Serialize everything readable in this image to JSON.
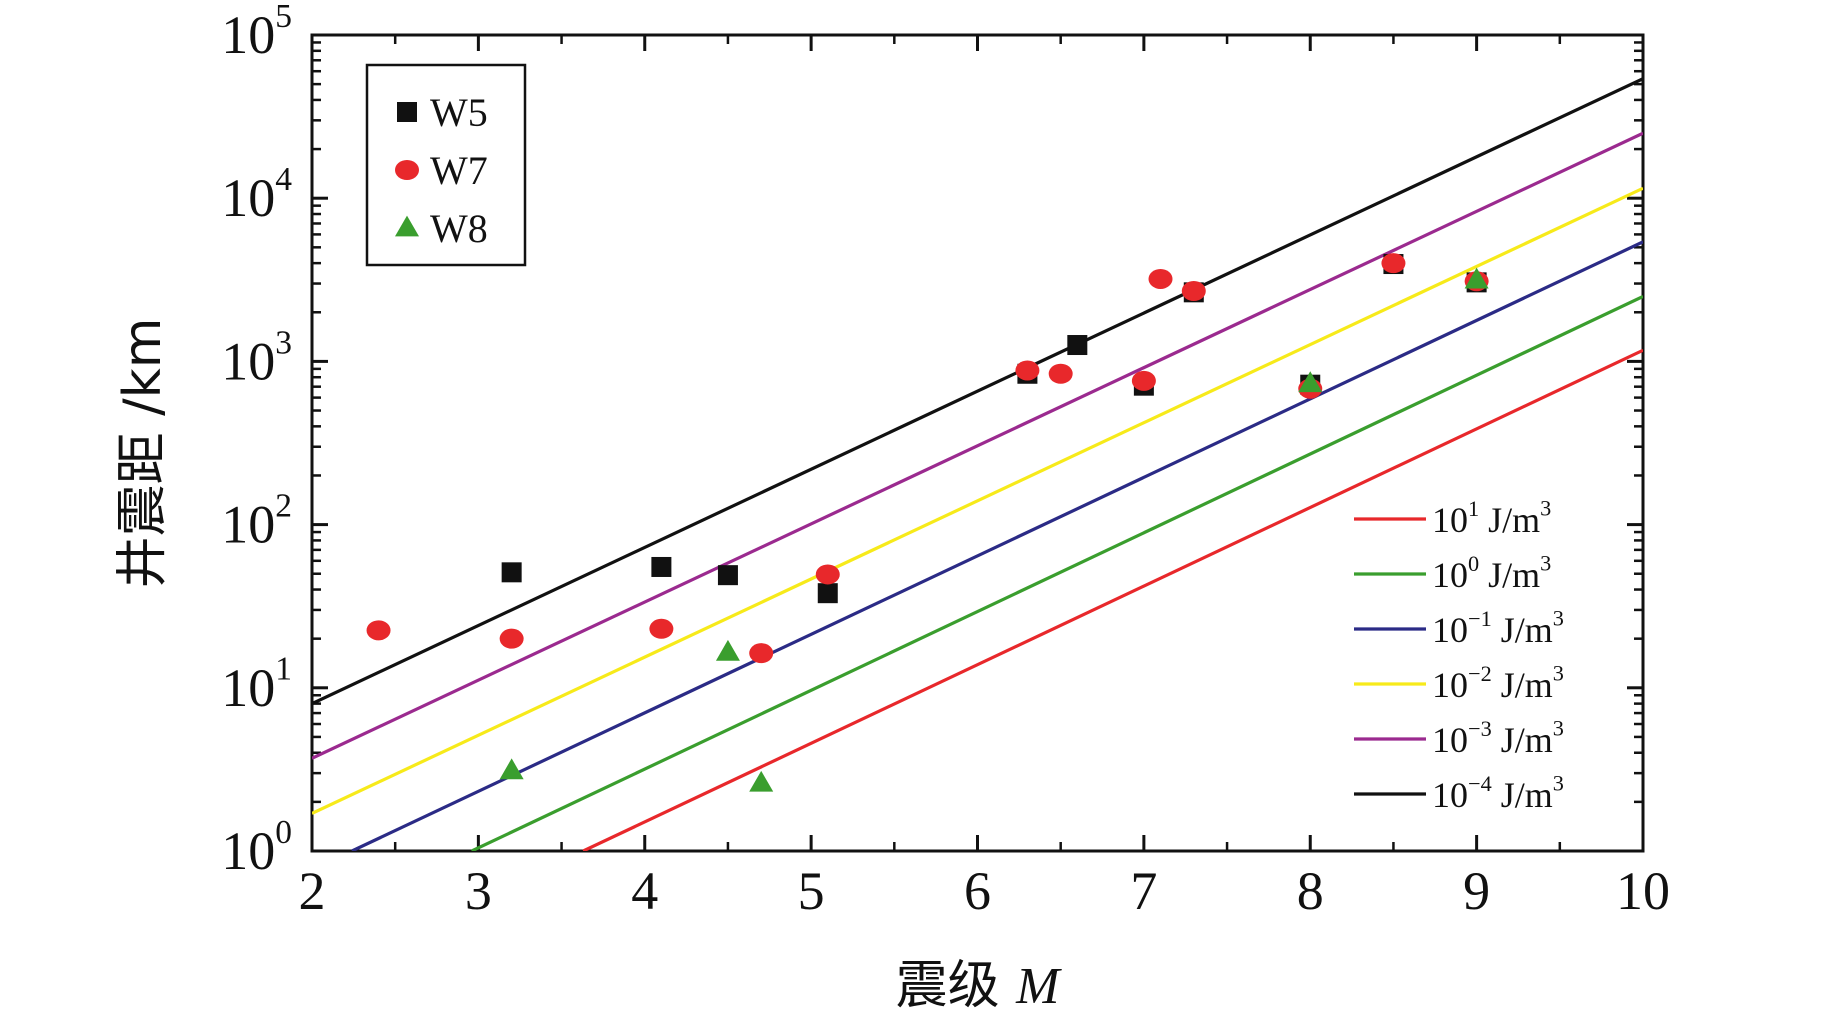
{
  "chart_data": {
    "type": "scatter",
    "title": "",
    "xlabel": "震级 M",
    "xlabel_parts": {
      "chinese": "震级",
      "symbol": "M"
    },
    "ylabel": "井震距 /km",
    "x_range": [
      2,
      10
    ],
    "y_scale": "log",
    "y_range": [
      1,
      100000
    ],
    "x_ticks": [
      2,
      3,
      4,
      5,
      6,
      7,
      8,
      9,
      10
    ],
    "y_tick_labels": [
      {
        "value": 1,
        "base": "10",
        "exp": "0"
      },
      {
        "value": 10,
        "base": "10",
        "exp": "1"
      },
      {
        "value": 100,
        "base": "10",
        "exp": "2"
      },
      {
        "value": 1000,
        "base": "10",
        "exp": "3"
      },
      {
        "value": 10000,
        "base": "10",
        "exp": "4"
      },
      {
        "value": 100000,
        "base": "10",
        "exp": "5"
      }
    ],
    "scatter_series": [
      {
        "name": "W5",
        "marker": "square",
        "color": "#111111",
        "points": [
          {
            "x": 3.2,
            "y": 51
          },
          {
            "x": 4.1,
            "y": 55
          },
          {
            "x": 4.5,
            "y": 49
          },
          {
            "x": 5.1,
            "y": 38
          },
          {
            "x": 6.3,
            "y": 840
          },
          {
            "x": 6.6,
            "y": 1260
          },
          {
            "x": 7.0,
            "y": 710
          },
          {
            "x": 7.3,
            "y": 2650
          },
          {
            "x": 8.0,
            "y": 720
          },
          {
            "x": 8.5,
            "y": 3950
          },
          {
            "x": 9.0,
            "y": 3050
          }
        ]
      },
      {
        "name": "W7",
        "marker": "circle",
        "color": "#e8282b",
        "points": [
          {
            "x": 2.4,
            "y": 22.5
          },
          {
            "x": 3.2,
            "y": 20
          },
          {
            "x": 4.1,
            "y": 23
          },
          {
            "x": 4.7,
            "y": 16.3
          },
          {
            "x": 5.1,
            "y": 49.5
          },
          {
            "x": 6.3,
            "y": 880
          },
          {
            "x": 6.5,
            "y": 840
          },
          {
            "x": 7.0,
            "y": 760
          },
          {
            "x": 7.1,
            "y": 3200
          },
          {
            "x": 7.3,
            "y": 2700
          },
          {
            "x": 8.0,
            "y": 680
          },
          {
            "x": 8.5,
            "y": 4000
          },
          {
            "x": 9.0,
            "y": 3100
          }
        ]
      },
      {
        "name": "W8",
        "marker": "triangle",
        "color": "#3a9e2e",
        "points": [
          {
            "x": 3.2,
            "y": 3.1
          },
          {
            "x": 4.5,
            "y": 16.5
          },
          {
            "x": 4.7,
            "y": 2.6
          },
          {
            "x": 8.0,
            "y": 730
          },
          {
            "x": 9.0,
            "y": 3150
          }
        ]
      }
    ],
    "line_series": [
      {
        "name": "10^1 J/m^3",
        "base": "10",
        "exp": "1",
        "unit": "J/m",
        "unit_exp": "3",
        "color": "#e8282b",
        "points": [
          {
            "x": 3.63,
            "y": 1
          },
          {
            "x": 10,
            "y": 1170
          }
        ]
      },
      {
        "name": "10^0 J/m^3",
        "base": "10",
        "exp": "0",
        "unit": "J/m",
        "unit_exp": "3",
        "color": "#3a9e2e",
        "points": [
          {
            "x": 2.96,
            "y": 1
          },
          {
            "x": 10,
            "y": 2500
          }
        ]
      },
      {
        "name": "10^-1 J/m^3",
        "base": "10",
        "exp": "−1",
        "unit": "J/m",
        "unit_exp": "3",
        "color": "#2b2b86",
        "points": [
          {
            "x": 2.24,
            "y": 1
          },
          {
            "x": 10,
            "y": 5400
          }
        ]
      },
      {
        "name": "10^-2 J/m^3",
        "base": "10",
        "exp": "−2",
        "unit": "J/m",
        "unit_exp": "3",
        "color": "#f7ea1a",
        "points": [
          {
            "x": 2,
            "y": 1.7
          },
          {
            "x": 10,
            "y": 11500
          }
        ]
      },
      {
        "name": "10^-3 J/m^3",
        "base": "10",
        "exp": "−3",
        "unit": "J/m",
        "unit_exp": "3",
        "color": "#9b2a8f",
        "points": [
          {
            "x": 2,
            "y": 3.7
          },
          {
            "x": 10,
            "y": 25000
          }
        ]
      },
      {
        "name": "10^-4 J/m^3",
        "base": "10",
        "exp": "−4",
        "unit": "J/m",
        "unit_exp": "3",
        "color": "#111111",
        "points": [
          {
            "x": 2,
            "y": 8
          },
          {
            "x": 10,
            "y": 54000
          }
        ]
      }
    ],
    "legend_markers_position": "top-left",
    "legend_lines_position": "bottom-right",
    "grid": false
  }
}
